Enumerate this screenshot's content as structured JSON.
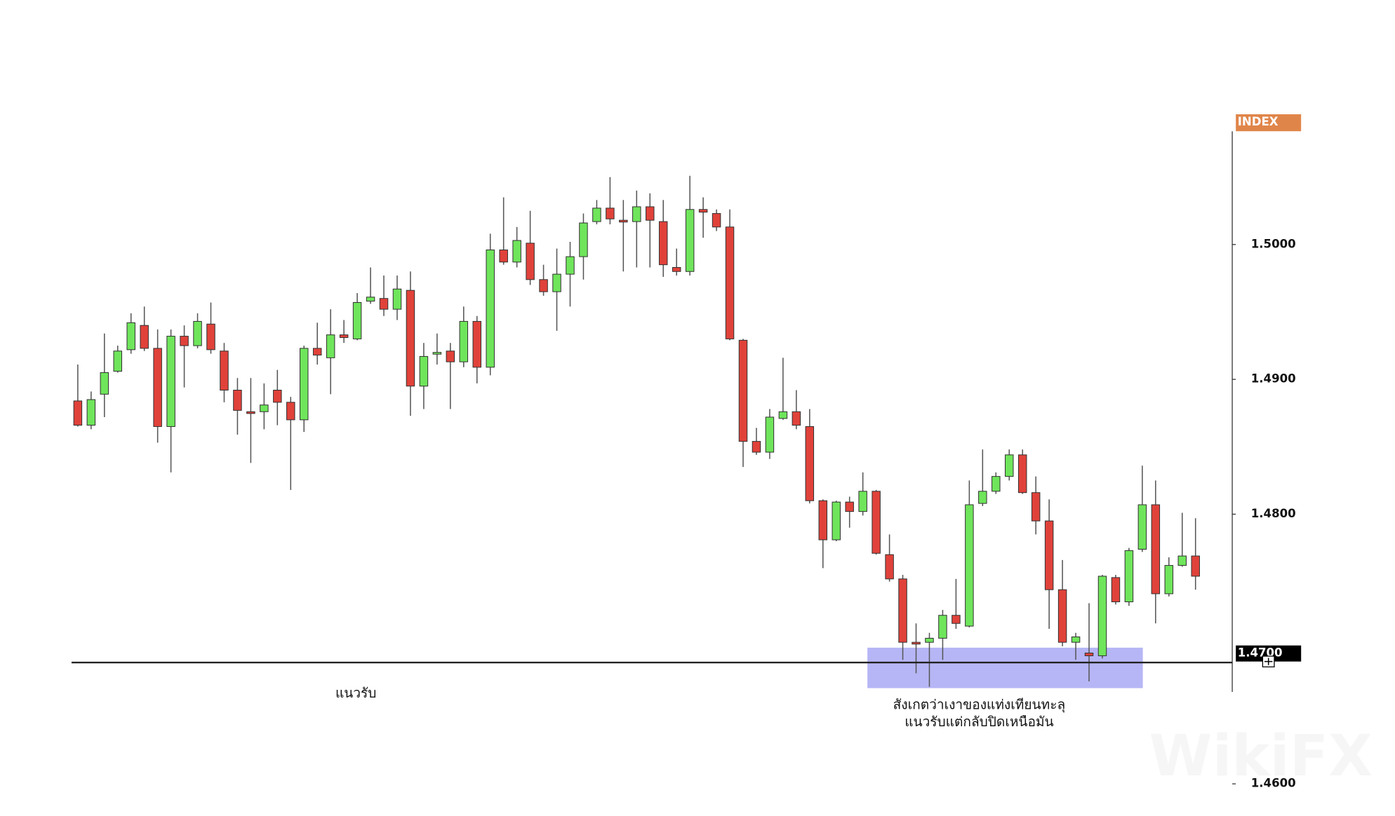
{
  "chart_data": {
    "type": "candlestick",
    "axis_title": "INDEX",
    "support_label": "แนวรับ",
    "annotation": [
      "สังเกตว่าเงาของแท่งเทียนทะลุ",
      "แนวรับแต่กลับปิดเหนือมัน"
    ],
    "watermark": "WikiFX",
    "up_color": "#6fe55b",
    "down_color": "#e0423a",
    "highlight_color": "#a9a9f5",
    "ylim": [
      1.46,
      1.5086
    ],
    "yticks": [
      {
        "value": 1.46,
        "label": "1.4600"
      },
      {
        "value": 1.48,
        "label": "1.4800"
      },
      {
        "value": 1.49,
        "label": "1.4900"
      },
      {
        "value": 1.5,
        "label": "1.5000"
      }
    ],
    "cursor_label": {
      "value": 1.47,
      "label": "1.4700"
    },
    "support_level": 1.469,
    "highlight_range": [
      1.4671,
      1.4701
    ],
    "open": [
      1.4884,
      1.4866,
      1.4889,
      1.4906,
      1.4922,
      1.494,
      1.4923,
      1.4865,
      1.4932,
      1.4925,
      1.4941,
      1.4921,
      1.4892,
      1.4876,
      1.4876,
      1.4892,
      1.4883,
      1.487,
      1.4923,
      1.4916,
      1.4933,
      1.493,
      1.4958,
      1.496,
      1.4952,
      1.4966,
      1.4895,
      1.4919,
      1.4921,
      1.4913,
      1.4943,
      1.4909,
      1.4996,
      1.4987,
      1.5001,
      1.4974,
      1.4965,
      1.4978,
      1.4991,
      1.5017,
      1.5027,
      1.5018,
      1.5017,
      1.5028,
      1.5017,
      1.4983,
      1.498,
      1.5026,
      1.5023,
      1.5013,
      1.4929,
      1.4854,
      1.4846,
      1.4871,
      1.4876,
      1.4865,
      1.481,
      1.4781,
      1.4809,
      1.4802,
      1.4817,
      1.477,
      1.4752,
      1.4705,
      1.4705,
      1.4708,
      1.4725,
      1.4717,
      1.4808,
      1.4817,
      1.4828,
      1.4844,
      1.4816,
      1.4795,
      1.4744,
      1.4705,
      1.4697,
      1.4695,
      1.4753,
      1.4735,
      1.4774,
      1.4807,
      1.4741,
      1.4762,
      1.4769
    ],
    "high": [
      1.4911,
      1.4891,
      1.4934,
      1.4925,
      1.4949,
      1.4954,
      1.4937,
      1.4937,
      1.494,
      1.4949,
      1.4957,
      1.4927,
      1.4901,
      1.4901,
      1.4897,
      1.4907,
      1.4887,
      1.4925,
      1.4942,
      1.4952,
      1.4944,
      1.4964,
      1.4983,
      1.4977,
      1.4977,
      1.498,
      1.4927,
      1.4934,
      1.4927,
      1.4954,
      1.4947,
      1.5008,
      1.5035,
      1.5013,
      1.5025,
      1.4985,
      1.4997,
      1.5002,
      1.5023,
      1.5033,
      1.505,
      1.5033,
      1.504,
      1.5038,
      1.5033,
      1.4997,
      1.5051,
      1.5035,
      1.5026,
      1.5026,
      1.493,
      1.4864,
      1.4878,
      1.4916,
      1.4892,
      1.4878,
      1.4811,
      1.481,
      1.4813,
      1.4831,
      1.4818,
      1.4785,
      1.4755,
      1.4719,
      1.4712,
      1.4729,
      1.4752,
      1.4825,
      1.4848,
      1.4831,
      1.4848,
      1.4848,
      1.4828,
      1.4811,
      1.4766,
      1.4712,
      1.4734,
      1.4755,
      1.4755,
      1.4775,
      1.4836,
      1.4825,
      1.4768,
      1.4801,
      1.4797
    ],
    "low": [
      1.4865,
      1.4863,
      1.4872,
      1.4905,
      1.4919,
      1.4921,
      1.4853,
      1.4831,
      1.4894,
      1.4923,
      1.4919,
      1.4883,
      1.4859,
      1.4838,
      1.4863,
      1.4866,
      1.4818,
      1.4861,
      1.4911,
      1.4889,
      1.4927,
      1.4929,
      1.4956,
      1.4947,
      1.4944,
      1.4873,
      1.4878,
      1.4911,
      1.4878,
      1.4909,
      1.4897,
      1.4903,
      1.4985,
      1.4983,
      1.497,
      1.4962,
      1.4936,
      1.4954,
      1.4974,
      1.5015,
      1.5015,
      1.498,
      1.4983,
      1.4983,
      1.4976,
      1.4977,
      1.4977,
      1.5005,
      1.501,
      1.4929,
      1.4835,
      1.4844,
      1.4841,
      1.487,
      1.4863,
      1.4808,
      1.476,
      1.478,
      1.479,
      1.4799,
      1.477,
      1.475,
      1.4692,
      1.4682,
      1.4672,
      1.4692,
      1.4715,
      1.4716,
      1.4806,
      1.4815,
      1.4825,
      1.4815,
      1.4785,
      1.4715,
      1.4702,
      1.4692,
      1.4676,
      1.4693,
      1.4733,
      1.4732,
      1.4772,
      1.4719,
      1.4739,
      1.4761,
      1.4744
    ],
    "close": [
      1.4866,
      1.4885,
      1.4905,
      1.4921,
      1.4942,
      1.4923,
      1.4865,
      1.4932,
      1.4925,
      1.4943,
      1.4922,
      1.4892,
      1.4877,
      1.4875,
      1.4881,
      1.4883,
      1.487,
      1.4923,
      1.4918,
      1.4933,
      1.4931,
      1.4957,
      1.4961,
      1.4952,
      1.4967,
      1.4895,
      1.4917,
      1.492,
      1.4913,
      1.4943,
      1.4909,
      1.4996,
      1.4987,
      1.5003,
      1.4974,
      1.4965,
      1.4978,
      1.4991,
      1.5016,
      1.5027,
      1.5019,
      1.5017,
      1.5028,
      1.5018,
      1.4985,
      1.498,
      1.5026,
      1.5024,
      1.5013,
      1.493,
      1.4854,
      1.4846,
      1.4872,
      1.4876,
      1.4866,
      1.481,
      1.4781,
      1.4809,
      1.4802,
      1.4817,
      1.4771,
      1.4752,
      1.4705,
      1.4704,
      1.4708,
      1.4725,
      1.4719,
      1.4807,
      1.4817,
      1.4828,
      1.4844,
      1.4816,
      1.4795,
      1.4744,
      1.4705,
      1.4709,
      1.4695,
      1.4754,
      1.4735,
      1.4773,
      1.4807,
      1.4741,
      1.4762,
      1.4769,
      1.4754
    ]
  }
}
